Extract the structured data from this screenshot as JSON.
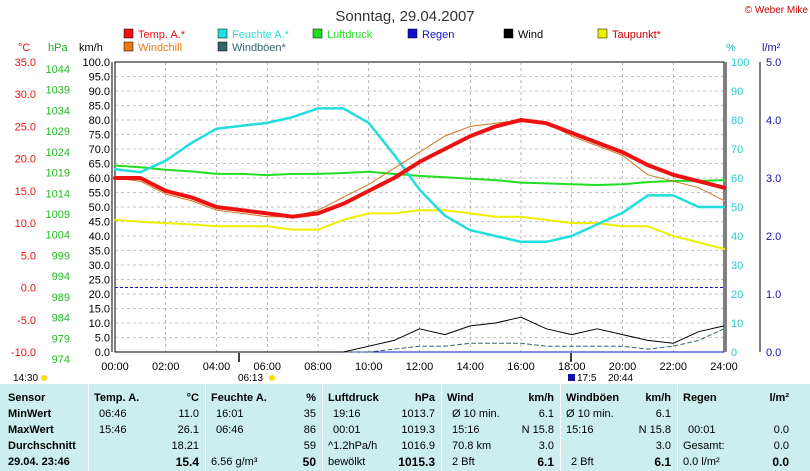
{
  "title": "Sonntag, 29.04.2007",
  "copyright": "© Weber Mike",
  "legend": [
    {
      "label": "Temp. A.*",
      "color": "#ee1111"
    },
    {
      "label": "Feuchte A.*",
      "color": "#22dddd"
    },
    {
      "label": "Luftdruck",
      "color": "#22dd22"
    },
    {
      "label": "Regen",
      "color": "#1111cc"
    },
    {
      "label": "Wind",
      "color": "#000000"
    },
    {
      "label": "Taupunkt*",
      "color": "#eeee00"
    },
    {
      "label": "Windchill",
      "color": "#ee7711"
    },
    {
      "label": "Windböen*",
      "color": "#336666"
    }
  ],
  "axes": {
    "temp_unit": "°C",
    "press_unit": "hPa",
    "wind_unit": "km/h",
    "hum_unit": "%",
    "rain_unit": "l/m²",
    "temp_ticks": [
      "35.0",
      "30.0",
      "25.0",
      "20.0",
      "15.0",
      "10.0",
      "5.0",
      "0.0",
      "-5.0",
      "-10.0"
    ],
    "press_ticks": [
      "1044",
      "1039",
      "1034",
      "1029",
      "1024",
      "1019",
      "1014",
      "1009",
      "1004",
      "999",
      "994",
      "989",
      "984",
      "979",
      "974"
    ],
    "wind_ticks": [
      "100.0",
      "95.0",
      "90.0",
      "85.0",
      "80.0",
      "75.0",
      "70.0",
      "65.0",
      "60.0",
      "55.0",
      "50.0",
      "45.0",
      "40.0",
      "35.0",
      "30.0",
      "25.0",
      "20.0",
      "15.0",
      "10.0",
      "5.0",
      "0.0"
    ],
    "hum_ticks": [
      "100",
      "90",
      "80",
      "70",
      "60",
      "50",
      "40",
      "30",
      "20",
      "10",
      "0"
    ],
    "rain_ticks": [
      "5.0",
      "4.0",
      "3.0",
      "2.0",
      "1.0",
      "0.0"
    ],
    "time_ticks": [
      "00:00",
      "02:00",
      "04:00",
      "06:00",
      "08:00",
      "10:00",
      "12:00",
      "14:00",
      "16:00",
      "18:00",
      "20:00",
      "22:00",
      "24:00"
    ]
  },
  "sun_markers": {
    "left": "14:30",
    "sunrise": "06:13",
    "sunset": "17:5",
    "set2": "20:44"
  },
  "chart_data": {
    "type": "line",
    "x_hours": [
      0,
      1,
      2,
      3,
      4,
      5,
      6,
      7,
      8,
      9,
      10,
      11,
      12,
      13,
      14,
      15,
      16,
      17,
      18,
      19,
      20,
      21,
      22,
      23,
      24
    ],
    "series": [
      {
        "name": "Temp. A.*",
        "unit": "°C",
        "values": [
          17.0,
          17.0,
          15.0,
          14.0,
          12.5,
          12.0,
          11.5,
          11.0,
          11.5,
          13.0,
          15.0,
          17.0,
          19.5,
          21.5,
          23.5,
          25.0,
          26.0,
          25.5,
          24.0,
          22.5,
          21.0,
          19.0,
          17.5,
          16.5,
          15.5
        ]
      },
      {
        "name": "Windchill",
        "values": [
          17.0,
          16.5,
          14.5,
          13.5,
          12.0,
          11.5,
          11.0,
          11.0,
          12.0,
          14.0,
          16.0,
          18.5,
          21.0,
          23.5,
          25.0,
          25.5,
          26.0,
          25.5,
          23.5,
          22.0,
          20.5,
          17.5,
          16.5,
          15.5,
          13.5
        ]
      },
      {
        "name": "Feuchte A.*",
        "unit": "%",
        "values": [
          63,
          62,
          66,
          72,
          77,
          78,
          79,
          81,
          84,
          84,
          79,
          68,
          56,
          47,
          42,
          40,
          38,
          38,
          40,
          44,
          48,
          54,
          54,
          50,
          50
        ]
      },
      {
        "name": "Luftdruck",
        "unit": "hPa",
        "values": [
          1019.0,
          1018.6,
          1018.0,
          1017.6,
          1017.0,
          1017.0,
          1016.7,
          1017.0,
          1017.0,
          1017.2,
          1017.5,
          1017.0,
          1016.5,
          1016.2,
          1015.8,
          1015.5,
          1014.9,
          1014.7,
          1014.5,
          1014.3,
          1014.5,
          1015.0,
          1015.3,
          1015.3,
          1015.5
        ]
      },
      {
        "name": "Taupunkt*",
        "unit": "°C",
        "values": [
          10.5,
          10.2,
          10.0,
          9.8,
          9.5,
          9.5,
          9.5,
          9.0,
          9.0,
          10.5,
          11.5,
          11.5,
          12.0,
          12.0,
          11.5,
          11.0,
          11.0,
          10.5,
          10.0,
          10.0,
          9.5,
          9.5,
          8.0,
          7.0,
          6.0
        ]
      },
      {
        "name": "Wind",
        "unit": "km/h",
        "values": [
          0,
          0,
          0,
          0,
          0,
          0,
          0,
          0,
          0,
          0,
          2,
          4,
          8,
          6,
          9,
          10,
          12,
          8,
          6,
          8,
          6,
          4,
          3,
          7,
          9
        ]
      },
      {
        "name": "Windböen*",
        "unit": "km/h",
        "values": [
          0,
          0,
          0,
          0,
          0,
          0,
          0,
          0,
          0,
          0,
          0,
          1,
          2,
          2,
          3,
          3,
          3,
          2,
          2,
          2,
          2,
          1,
          2,
          4,
          8
        ]
      },
      {
        "name": "Regen",
        "unit": "l/m²",
        "values": [
          0,
          0,
          0,
          0,
          0,
          0,
          0,
          0,
          0,
          0,
          0,
          0,
          0,
          0,
          0,
          0,
          0,
          0,
          0,
          0,
          0,
          0,
          0,
          0,
          0
        ]
      }
    ],
    "y_temp_range": [
      -10,
      35
    ],
    "y_wind_range": [
      0,
      100
    ],
    "y_press_range": [
      974,
      1044
    ],
    "y_hum_range": [
      0,
      100
    ],
    "y_rain_range": [
      0,
      5
    ],
    "reference_line": {
      "temp": 0.0,
      "color": "#1111cc"
    }
  },
  "table": {
    "row_labels": [
      "Sensor",
      "MinWert",
      "MaxWert",
      "Durchschnitt",
      "29.04. 23:46"
    ],
    "temp": {
      "header": "Temp. A.",
      "unit": "°C",
      "min_time": "06:46",
      "min": "11.0",
      "max_time": "15:46",
      "max": "26.1",
      "avg": "18.21",
      "cur": "15.4"
    },
    "hum": {
      "header": "Feuchte A.",
      "unit": "%",
      "min_time": "16:01",
      "min": "35",
      "max_time": "06:46",
      "max": "86",
      "avg": "59",
      "cur_extra": "6.56 g/m³",
      "cur": "50"
    },
    "press": {
      "header": "Luftdruck",
      "unit": "hPa",
      "min_time": "19:16",
      "min": "1013.7",
      "max_time": "00:01",
      "max": "1019.3",
      "avg_label": "^1.2hPa/h",
      "avg": "1016.9",
      "cur_label": "bewölkt",
      "cur": "1015.3"
    },
    "wind": {
      "header": "Wind",
      "unit": "km/h",
      "min_label": "Ø 10 min.",
      "min": "6.1",
      "max_time": "15:16",
      "max": "N 15.8",
      "avg_label": "70.8 km",
      "avg": "3.0",
      "cur_label": "2 Bft",
      "cur": "6.1"
    },
    "gust": {
      "header": "Windböen",
      "unit": "km/h",
      "min_label": "Ø 10 min.",
      "min": "6.1",
      "max_time": "15:16",
      "max": "N 15.8",
      "avg": "3.0",
      "cur_label": "2 Bft",
      "cur": "6.1"
    },
    "rain": {
      "header": "Regen",
      "unit": "l/m²",
      "max_time": "00:01",
      "max": "0.0",
      "avg_label": "Gesamt:",
      "avg": "0.0",
      "cur_label": "0.0 l/m²",
      "cur": "0.0"
    }
  }
}
